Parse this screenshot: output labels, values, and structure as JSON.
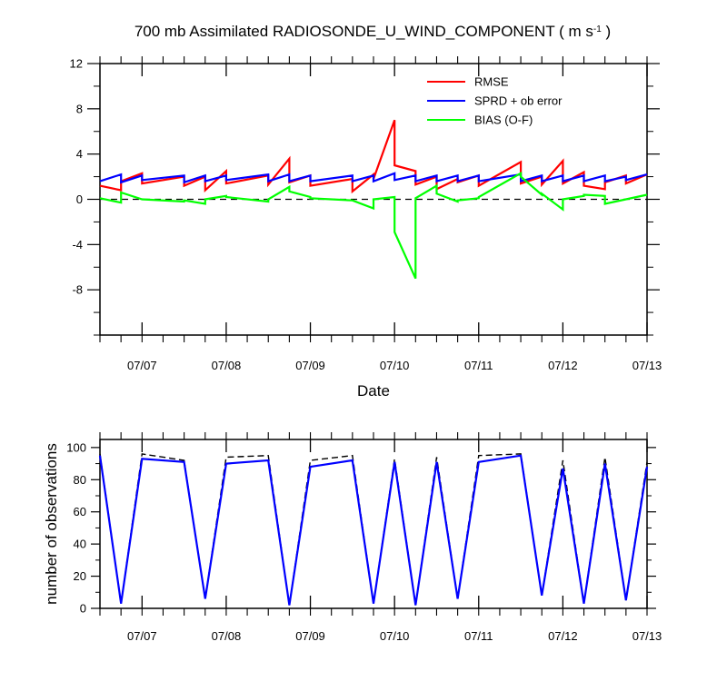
{
  "chart_data": [
    {
      "type": "line",
      "title": "700 mb Assimilated RADIOSONDE_U_WIND_COMPONENT ( m s",
      "title_sup": "-1",
      "title_close": " )",
      "xlabel": "Date",
      "ylabel": "",
      "xlim": [
        -0.5,
        6.0
      ],
      "ylim": [
        -12,
        12
      ],
      "x_ticks": [
        0,
        1,
        2,
        3,
        4,
        5,
        6
      ],
      "x_tick_labels": [
        "07/07",
        "07/08",
        "07/09",
        "07/10",
        "07/11",
        "07/12",
        "07/13"
      ],
      "y_ticks": [
        -8,
        -4,
        0,
        4,
        8,
        12
      ],
      "y_tick_labels": [
        "-8",
        "-4",
        "0",
        "4",
        "8",
        "12"
      ],
      "zero_line": true,
      "legend_position": "top-right",
      "series": [
        {
          "name": "RMSE",
          "color": "#ff0000",
          "x": [
            -0.5,
            -0.25,
            -0.25,
            0.0,
            0.0,
            0.5,
            0.5,
            0.75,
            0.75,
            1.0,
            1.0,
            1.5,
            1.5,
            1.75,
            1.75,
            2.0,
            2.0,
            2.5,
            2.5,
            2.75,
            2.75,
            3.0,
            3.0,
            3.25,
            3.25,
            3.5,
            3.5,
            3.75,
            3.75,
            4.0,
            4.0,
            4.5,
            4.5,
            4.75,
            4.75,
            5.0,
            5.0,
            5.25,
            5.25,
            5.5,
            5.5,
            5.75,
            5.75,
            6.0
          ],
          "values": [
            1.2,
            0.8,
            1.6,
            2.3,
            1.4,
            2.0,
            1.2,
            2.0,
            0.8,
            2.5,
            1.4,
            2.1,
            1.3,
            3.6,
            1.5,
            2.1,
            1.2,
            1.8,
            0.7,
            2.2,
            1.8,
            7.0,
            3.0,
            2.5,
            1.3,
            2.0,
            0.9,
            1.8,
            1.5,
            2.1,
            1.2,
            3.3,
            1.4,
            2.0,
            1.3,
            3.4,
            1.4,
            2.4,
            1.2,
            0.9,
            1.5,
            2.1,
            1.4,
            2.2
          ]
        },
        {
          "name": "SPRD + ob error",
          "color": "#0000ff",
          "x": [
            -0.5,
            -0.25,
            -0.25,
            0.0,
            0.0,
            0.5,
            0.5,
            0.75,
            0.75,
            1.0,
            1.0,
            1.5,
            1.5,
            1.75,
            1.75,
            2.0,
            2.0,
            2.5,
            2.5,
            2.75,
            2.75,
            3.0,
            3.0,
            3.25,
            3.25,
            3.5,
            3.5,
            3.75,
            3.75,
            4.0,
            4.0,
            4.5,
            4.5,
            4.75,
            4.75,
            5.0,
            5.0,
            5.25,
            5.25,
            5.5,
            5.5,
            5.75,
            5.75,
            6.0
          ],
          "values": [
            1.6,
            2.2,
            1.5,
            2.1,
            1.7,
            2.1,
            1.5,
            2.1,
            1.6,
            2.1,
            1.7,
            2.2,
            1.6,
            2.2,
            1.6,
            2.1,
            1.6,
            2.1,
            1.6,
            2.1,
            1.6,
            2.3,
            1.7,
            2.1,
            1.6,
            2.1,
            1.6,
            2.1,
            1.6,
            2.1,
            1.6,
            2.2,
            1.6,
            2.1,
            1.6,
            2.1,
            1.6,
            2.1,
            1.6,
            2.1,
            1.6,
            2.0,
            1.7,
            2.2
          ]
        },
        {
          "name": "BIAS (O-F)",
          "color": "#00ff00",
          "x": [
            -0.5,
            -0.25,
            -0.25,
            0.0,
            0.0,
            0.5,
            0.5,
            0.75,
            0.75,
            1.0,
            1.0,
            1.5,
            1.5,
            1.75,
            1.75,
            2.0,
            2.0,
            2.5,
            2.5,
            2.75,
            2.75,
            3.0,
            3.0,
            3.25,
            3.25,
            3.5,
            3.5,
            3.75,
            3.75,
            4.0,
            4.0,
            4.5,
            4.5,
            4.75,
            4.75,
            5.0,
            5.0,
            5.25,
            5.25,
            5.5,
            5.5,
            5.75,
            5.75,
            6.0
          ],
          "values": [
            0.1,
            -0.3,
            0.6,
            0.0,
            0.0,
            -0.2,
            -0.1,
            -0.4,
            0.0,
            0.3,
            0.2,
            -0.2,
            0.0,
            1.1,
            0.7,
            0.2,
            0.1,
            -0.1,
            -0.1,
            -0.8,
            0.0,
            0.2,
            -2.9,
            -7.0,
            0.1,
            1.2,
            0.5,
            -0.2,
            -0.1,
            0.1,
            0.2,
            2.3,
            2.0,
            0.4,
            0.5,
            -0.9,
            0.0,
            0.3,
            0.4,
            0.3,
            -0.4,
            0.0,
            0.0,
            0.4
          ]
        }
      ]
    },
    {
      "type": "line",
      "title": "",
      "xlabel": "",
      "ylabel": "number of observations",
      "xlim": [
        -0.5,
        6.0
      ],
      "ylim": [
        0,
        105
      ],
      "x_ticks": [
        0,
        1,
        2,
        3,
        4,
        5,
        6
      ],
      "x_tick_labels": [
        "07/07",
        "07/08",
        "07/09",
        "07/10",
        "07/11",
        "07/12",
        "07/13"
      ],
      "y_ticks": [
        0,
        20,
        40,
        60,
        80,
        100
      ],
      "y_tick_labels": [
        "0",
        "20",
        "40",
        "60",
        "80",
        "100"
      ],
      "series": [
        {
          "color": "#000000",
          "dash": true,
          "x": [
            -0.5,
            -0.25,
            0.0,
            0.5,
            0.75,
            1.0,
            1.5,
            1.75,
            2.0,
            2.5,
            2.75,
            3.0,
            3.25,
            3.5,
            3.75,
            4.0,
            4.5,
            4.75,
            5.0,
            5.25,
            5.5,
            5.75,
            6.0
          ],
          "values": [
            96,
            3,
            96,
            92,
            6,
            94,
            95,
            2,
            92,
            95,
            3,
            93,
            2,
            94,
            6,
            95,
            96,
            8,
            92,
            3,
            94,
            5,
            91
          ]
        },
        {
          "color": "#0000ff",
          "dash": false,
          "x": [
            -0.5,
            -0.25,
            0.0,
            0.5,
            0.75,
            1.0,
            1.5,
            1.75,
            2.0,
            2.5,
            2.75,
            3.0,
            3.25,
            3.5,
            3.75,
            4.0,
            4.5,
            4.75,
            5.0,
            5.25,
            5.5,
            5.75,
            6.0
          ],
          "values": [
            95,
            3,
            93,
            91,
            6,
            90,
            92,
            2,
            88,
            92,
            3,
            91,
            2,
            91,
            6,
            91,
            95,
            8,
            87,
            3,
            90,
            5,
            88
          ]
        }
      ]
    }
  ]
}
